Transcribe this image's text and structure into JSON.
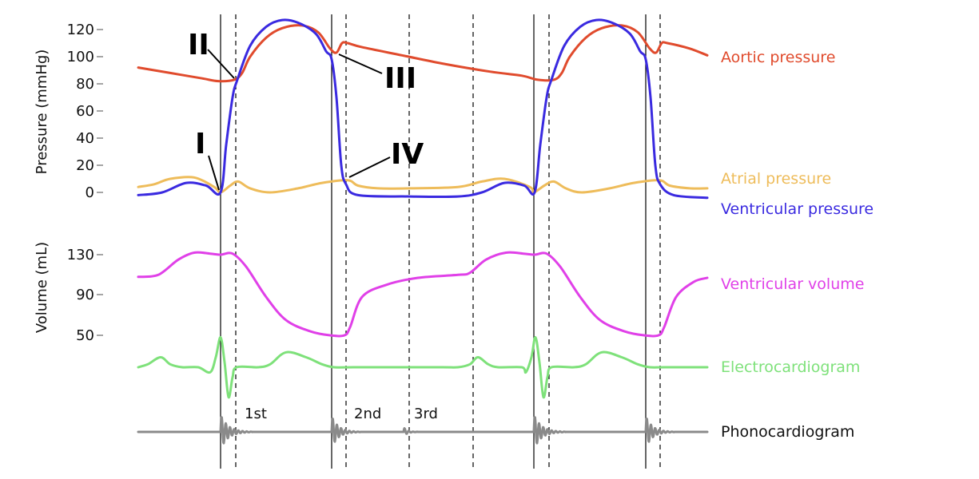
{
  "chart_data": [
    {
      "type": "line",
      "title": "",
      "xlabel": "",
      "ylabel": "Pressure (mmHg)",
      "yticks": [
        "0",
        "20",
        "40",
        "60",
        "80",
        "100",
        "120"
      ],
      "ylim": [
        0,
        120
      ],
      "series": [
        {
          "name": "Aortic pressure",
          "color": "#e04b2d",
          "points": [
            [
              0,
              92
            ],
            [
              40,
              88
            ],
            [
              80,
              84
            ],
            [
              100,
              82
            ],
            [
              120,
              83
            ],
            [
              130,
              88
            ],
            [
              140,
              100
            ],
            [
              160,
              114
            ],
            [
              180,
              121
            ],
            [
              205,
              123
            ],
            [
              225,
              118
            ],
            [
              240,
              106
            ],
            [
              248,
              103
            ],
            [
              255,
              110
            ],
            [
              262,
              110
            ],
            [
              280,
              107
            ],
            [
              330,
              101
            ],
            [
              380,
              95
            ],
            [
              440,
              89
            ],
            [
              480,
              86
            ],
            [
              500,
              83
            ],
            [
              520,
              83
            ],
            [
              530,
              88
            ],
            [
              540,
              100
            ],
            [
              560,
              114
            ],
            [
              580,
              121
            ],
            [
              605,
              123
            ],
            [
              625,
              118
            ],
            [
              640,
              106
            ],
            [
              648,
              103
            ],
            [
              655,
              110
            ],
            [
              662,
              110
            ],
            [
              690,
              106
            ],
            [
              712,
              101
            ]
          ]
        },
        {
          "name": "Atrial pressure",
          "color": "#eebc5a",
          "points": [
            [
              0,
              4
            ],
            [
              20,
              6
            ],
            [
              40,
              10
            ],
            [
              70,
              11
            ],
            [
              95,
              4
            ],
            [
              103,
              0
            ],
            [
              115,
              5
            ],
            [
              125,
              8
            ],
            [
              140,
              3
            ],
            [
              165,
              0
            ],
            [
              200,
              3
            ],
            [
              230,
              7
            ],
            [
              262,
              9
            ],
            [
              275,
              5
            ],
            [
              300,
              3
            ],
            [
              340,
              3
            ],
            [
              400,
              4
            ],
            [
              430,
              8
            ],
            [
              458,
              10
            ],
            [
              490,
              4
            ],
            [
              495,
              0
            ],
            [
              508,
              5
            ],
            [
              520,
              8
            ],
            [
              535,
              3
            ],
            [
              555,
              0
            ],
            [
              590,
              3
            ],
            [
              620,
              7
            ],
            [
              652,
              9
            ],
            [
              665,
              5
            ],
            [
              690,
              3
            ],
            [
              712,
              3
            ]
          ]
        },
        {
          "name": "Ventricular pressure",
          "color": "#3a2ae0",
          "points": [
            [
              0,
              -2
            ],
            [
              30,
              0
            ],
            [
              60,
              7
            ],
            [
              85,
              5
            ],
            [
              103,
              0
            ],
            [
              110,
              35
            ],
            [
              118,
              70
            ],
            [
              124,
              83
            ],
            [
              140,
              108
            ],
            [
              160,
              122
            ],
            [
              180,
              127
            ],
            [
              200,
              125
            ],
            [
              222,
              117
            ],
            [
              235,
              104
            ],
            [
              242,
              98
            ],
            [
              248,
              70
            ],
            [
              254,
              20
            ],
            [
              260,
              6
            ],
            [
              275,
              -2
            ],
            [
              340,
              -3
            ],
            [
              400,
              -3
            ],
            [
              430,
              0
            ],
            [
              458,
              7
            ],
            [
              483,
              5
            ],
            [
              496,
              0
            ],
            [
              503,
              35
            ],
            [
              511,
              70
            ],
            [
              517,
              83
            ],
            [
              533,
              108
            ],
            [
              553,
              122
            ],
            [
              573,
              127
            ],
            [
              593,
              125
            ],
            [
              615,
              117
            ],
            [
              628,
              104
            ],
            [
              635,
              98
            ],
            [
              641,
              70
            ],
            [
              647,
              20
            ],
            [
              653,
              6
            ],
            [
              670,
              -2
            ],
            [
              712,
              -4
            ]
          ]
        }
      ]
    },
    {
      "type": "line",
      "title": "",
      "xlabel": "",
      "ylabel": "Volume (mL)",
      "yticks": [
        "50",
        "90",
        "130"
      ],
      "ylim": [
        50,
        130
      ],
      "series": [
        {
          "name": "Ventricular volume",
          "color": "#e040e8",
          "points": [
            [
              0,
              108
            ],
            [
              25,
              110
            ],
            [
              50,
              125
            ],
            [
              70,
              132
            ],
            [
              90,
              131
            ],
            [
              103,
              130
            ],
            [
              118,
              131
            ],
            [
              135,
              118
            ],
            [
              160,
              88
            ],
            [
              185,
              65
            ],
            [
              215,
              54
            ],
            [
              240,
              50
            ],
            [
              258,
              50
            ],
            [
              265,
              58
            ],
            [
              280,
              88
            ],
            [
              310,
              100
            ],
            [
              350,
              107
            ],
            [
              400,
              110
            ],
            [
              415,
              112
            ],
            [
              435,
              125
            ],
            [
              460,
              132
            ],
            [
              482,
              131
            ],
            [
              496,
              130
            ],
            [
              511,
              131
            ],
            [
              528,
              118
            ],
            [
              553,
              88
            ],
            [
              578,
              65
            ],
            [
              608,
              54
            ],
            [
              633,
              50
            ],
            [
              651,
              50
            ],
            [
              658,
              58
            ],
            [
              673,
              88
            ],
            [
              695,
              103
            ],
            [
              712,
              107
            ]
          ]
        }
      ]
    },
    {
      "type": "line",
      "title": "",
      "xlabel": "",
      "ylabel": "",
      "series": [
        {
          "name": "Electrocardiogram",
          "color": "#7ee17a",
          "points": [
            [
              0,
              0
            ],
            [
              12,
              3
            ],
            [
              28,
              10
            ],
            [
              40,
              3
            ],
            [
              55,
              0
            ],
            [
              75,
              0
            ],
            [
              90,
              -5
            ],
            [
              97,
              10
            ],
            [
              103,
              30
            ],
            [
              108,
              5
            ],
            [
              113,
              -30
            ],
            [
              118,
              -10
            ],
            [
              123,
              0
            ],
            [
              150,
              0
            ],
            [
              165,
              3
            ],
            [
              185,
              15
            ],
            [
              210,
              10
            ],
            [
              230,
              3
            ],
            [
              245,
              0
            ],
            [
              270,
              0
            ],
            [
              320,
              0
            ],
            [
              380,
              0
            ],
            [
              400,
              0
            ],
            [
              415,
              3
            ],
            [
              425,
              10
            ],
            [
              438,
              3
            ],
            [
              450,
              0
            ],
            [
              480,
              0
            ],
            [
              485,
              -5
            ],
            [
              492,
              10
            ],
            [
              497,
              30
            ],
            [
              502,
              5
            ],
            [
              507,
              -30
            ],
            [
              512,
              -10
            ],
            [
              517,
              0
            ],
            [
              545,
              0
            ],
            [
              560,
              3
            ],
            [
              580,
              15
            ],
            [
              605,
              10
            ],
            [
              625,
              3
            ],
            [
              640,
              0
            ],
            [
              660,
              0
            ],
            [
              712,
              0
            ]
          ]
        },
        {
          "name": "Phonocardiogram",
          "color": "#8a8a8a",
          "points": [
            [
              0,
              0
            ],
            [
              100,
              0
            ]
          ]
        }
      ]
    }
  ],
  "annotations": {
    "phases": [
      "I",
      "II",
      "III",
      "IV"
    ],
    "heart_sounds": [
      "1st",
      "2nd",
      "3rd"
    ]
  }
}
